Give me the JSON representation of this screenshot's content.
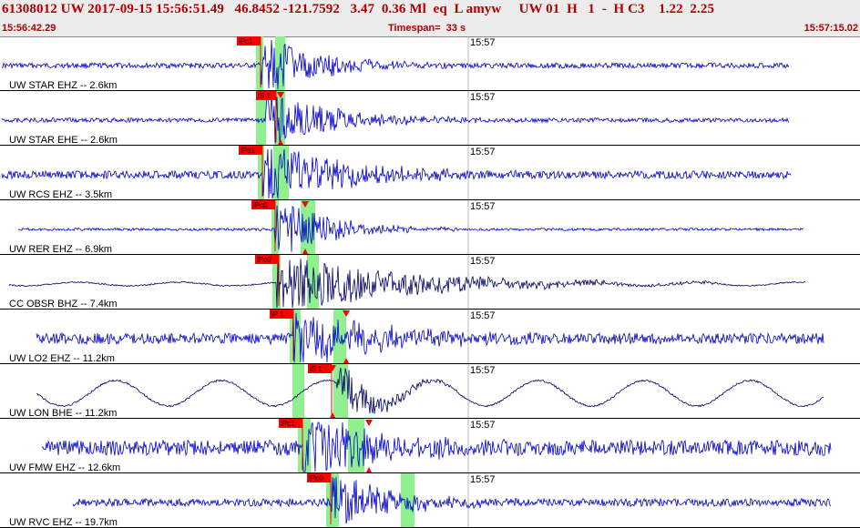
{
  "header": {
    "event_line": "61308012 UW 2017-09-15 15:56:51.49   46.8452 -121.7592   3.47  0.36 Ml  eq  L amyw     UW 01  H   1  -  H C3    1.22  2.25",
    "start_time": "15:56:42.29",
    "timespan": "Timespan=  33 s",
    "end_time": "15:57:15.02"
  },
  "colors": {
    "header_text": "#b00000",
    "blue_trace": "#0000cc",
    "dark_trace": "#000066",
    "window_green": "#90f090",
    "pick_red": "#ff0000"
  },
  "traces": [
    {
      "label": "UW STAR EHZ -- 2.6km",
      "time_tick": "15:57",
      "color": "blue",
      "type": "eq",
      "amp": 1.0,
      "noise": 0.12,
      "picks": [
        {
          "text": "iPc1",
          "tri": false
        }
      ]
    },
    {
      "label": "UW STAR EHE -- 2.6km",
      "time_tick": "15:57",
      "color": "blue",
      "type": "eq",
      "amp": 1.0,
      "noise": 0.1,
      "picks": [
        {
          "text": "iS 1",
          "tri": true
        }
      ]
    },
    {
      "label": "UW RCS EHZ -- 3.5km",
      "time_tick": "15:57",
      "color": "blue",
      "type": "eq",
      "amp": 1.0,
      "noise": 0.18,
      "picks": [
        {
          "text": "iPd1",
          "tri": false
        }
      ]
    },
    {
      "label": "UW RER EHZ -- 6.9km",
      "time_tick": "15:57",
      "color": "blue",
      "type": "eq",
      "amp": 1.0,
      "noise": 0.06,
      "picks": [
        {
          "text": "iPc0",
          "tri": false
        },
        {
          "text": "",
          "tri": true
        }
      ]
    },
    {
      "label": "CC OBSR BHZ -- 7.4km",
      "time_tick": "15:57",
      "color": "dark",
      "type": "eq",
      "amp": 1.0,
      "noise": 0.08,
      "picks": [
        {
          "text": "iPc0",
          "tri": false
        }
      ]
    },
    {
      "label": "UW LO2 EHZ -- 11.2km",
      "time_tick": "15:57",
      "color": "blue",
      "type": "eq",
      "amp": 1.0,
      "noise": 0.25,
      "picks": [
        {
          "text": "iP 1",
          "tri": false
        },
        {
          "text": "",
          "tri": true
        }
      ]
    },
    {
      "label": "UW LON BHE -- 11.2km",
      "time_tick": "15:57",
      "color": "dark",
      "type": "wave",
      "amp": 1.0,
      "noise": 0.05,
      "picks": [
        {
          "text": "iS 1",
          "tri": true
        }
      ]
    },
    {
      "label": "UW FMW EHZ -- 12.6km",
      "time_tick": "15:57",
      "color": "blue",
      "type": "eq",
      "amp": 1.0,
      "noise": 0.35,
      "picks": [
        {
          "text": "iPc1",
          "tri": false
        },
        {
          "text": "",
          "tri": true
        }
      ]
    },
    {
      "label": "UW RVC EHZ -- 19.7km",
      "time_tick": "15:57",
      "color": "blue",
      "type": "eq",
      "amp": 1.0,
      "noise": 0.18,
      "picks": [
        {
          "text": "iPc0",
          "tri": false
        }
      ]
    }
  ]
}
